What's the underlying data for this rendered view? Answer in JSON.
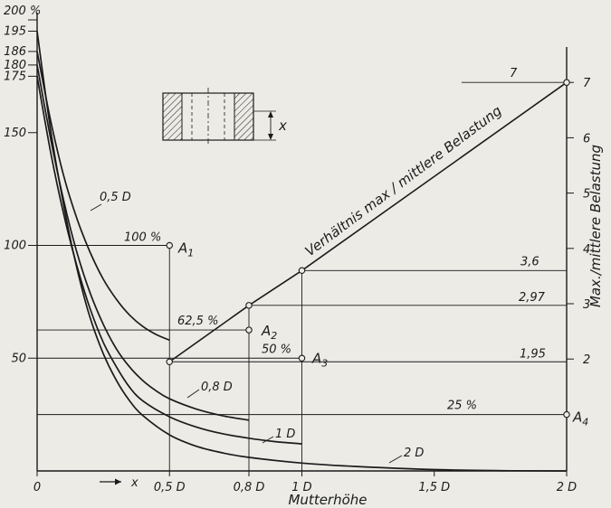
{
  "chart_data": {
    "type": "line",
    "xlabel": "Mutterhöhe",
    "ylabel_right": "Max./mittlere Belastung",
    "x_ticks": [
      {
        "x": 0,
        "label": "0"
      },
      {
        "x": 0.5,
        "label": "0,5 D"
      },
      {
        "x": 0.8,
        "label": "0,8 D"
      },
      {
        "x": 1.0,
        "label": "1 D"
      },
      {
        "x": 1.5,
        "label": "1,5 D"
      },
      {
        "x": 2.0,
        "label": "2 D"
      }
    ],
    "x_arrow_label": "→ x",
    "y_left_ticks": [
      {
        "y": 50,
        "label": "50"
      },
      {
        "y": 100,
        "label": "100"
      },
      {
        "y": 150,
        "label": "150"
      },
      {
        "y": 175,
        "label": "175"
      },
      {
        "y": 180,
        "label": "180"
      },
      {
        "y": 186,
        "label": "186"
      },
      {
        "y": 195,
        "label": "195"
      },
      {
        "y": 200,
        "label": "200 %"
      }
    ],
    "y_right_ticks": [
      {
        "y": 2,
        "label": "2"
      },
      {
        "y": 3,
        "label": "3"
      },
      {
        "y": 4,
        "label": "4"
      },
      {
        "y": 5,
        "label": "5"
      },
      {
        "y": 6,
        "label": "6"
      },
      {
        "y": 7,
        "label": "7"
      }
    ],
    "xlim": [
      0,
      2.0
    ],
    "ylim_left": [
      0,
      200
    ],
    "ylim_right": [
      0.39,
      7.27
    ],
    "series": [
      {
        "name": "0,5 D",
        "points": [
          [
            0,
            186
          ],
          [
            0.05,
            156
          ],
          [
            0.1,
            131
          ],
          [
            0.15,
            112
          ],
          [
            0.2,
            97
          ],
          [
            0.25,
            85
          ],
          [
            0.3,
            76
          ],
          [
            0.35,
            69
          ],
          [
            0.4,
            64
          ],
          [
            0.45,
            60.5
          ],
          [
            0.5,
            58
          ]
        ]
      },
      {
        "name": "0,8 D",
        "points": [
          [
            0,
            180
          ],
          [
            0.05,
            148
          ],
          [
            0.1,
            120
          ],
          [
            0.15,
            97
          ],
          [
            0.2,
            79
          ],
          [
            0.25,
            65
          ],
          [
            0.3,
            54
          ],
          [
            0.35,
            46
          ],
          [
            0.4,
            40
          ],
          [
            0.45,
            35.5
          ],
          [
            0.5,
            32
          ],
          [
            0.6,
            27.5
          ],
          [
            0.7,
            24.5
          ],
          [
            0.8,
            22.5
          ]
        ]
      },
      {
        "name": "1 D",
        "points": [
          [
            0,
            175
          ],
          [
            0.05,
            142
          ],
          [
            0.1,
            114
          ],
          [
            0.15,
            91
          ],
          [
            0.2,
            72
          ],
          [
            0.25,
            57
          ],
          [
            0.3,
            46
          ],
          [
            0.35,
            37
          ],
          [
            0.4,
            31
          ],
          [
            0.5,
            24
          ],
          [
            0.6,
            19.5
          ],
          [
            0.7,
            16.5
          ],
          [
            0.8,
            14.5
          ],
          [
            0.9,
            13
          ],
          [
            1.0,
            12
          ]
        ]
      },
      {
        "name": "2 D",
        "points": [
          [
            0,
            195
          ],
          [
            0.05,
            152
          ],
          [
            0.1,
            118
          ],
          [
            0.15,
            90
          ],
          [
            0.2,
            68
          ],
          [
            0.25,
            52
          ],
          [
            0.3,
            40
          ],
          [
            0.35,
            31
          ],
          [
            0.4,
            24.5
          ],
          [
            0.5,
            16
          ],
          [
            0.6,
            11
          ],
          [
            0.7,
            8
          ],
          [
            0.8,
            6
          ],
          [
            1.0,
            3.5
          ],
          [
            1.2,
            2
          ],
          [
            1.5,
            0.6
          ],
          [
            1.8,
            0.1
          ],
          [
            2.0,
            0
          ]
        ]
      }
    ],
    "ratio_line": {
      "label": "Verhältnis max / mittlere Belastung",
      "points": [
        [
          0.5,
          1.95
        ],
        [
          0.8,
          2.97
        ],
        [
          1.0,
          3.6
        ],
        [
          2.0,
          7
        ]
      ]
    },
    "reference_points": [
      {
        "name": "A1",
        "percent_label": "100 %",
        "x": 0.5,
        "y": 100
      },
      {
        "name": "A2",
        "percent_label": "62,5 %",
        "x": 0.8,
        "y": 62.5
      },
      {
        "name": "A3",
        "percent_label": "50 %",
        "x": 1.0,
        "y": 50
      },
      {
        "name": "A4",
        "percent_label": "25 %",
        "x": 2.0,
        "y": 25
      }
    ],
    "ratio_values": [
      {
        "value": 1.95,
        "label": "1,95"
      },
      {
        "value": 2.97,
        "label": "2,97"
      },
      {
        "value": 3.6,
        "label": "3,6"
      },
      {
        "value": 7,
        "label": "7"
      }
    ],
    "inset_label": "x"
  }
}
